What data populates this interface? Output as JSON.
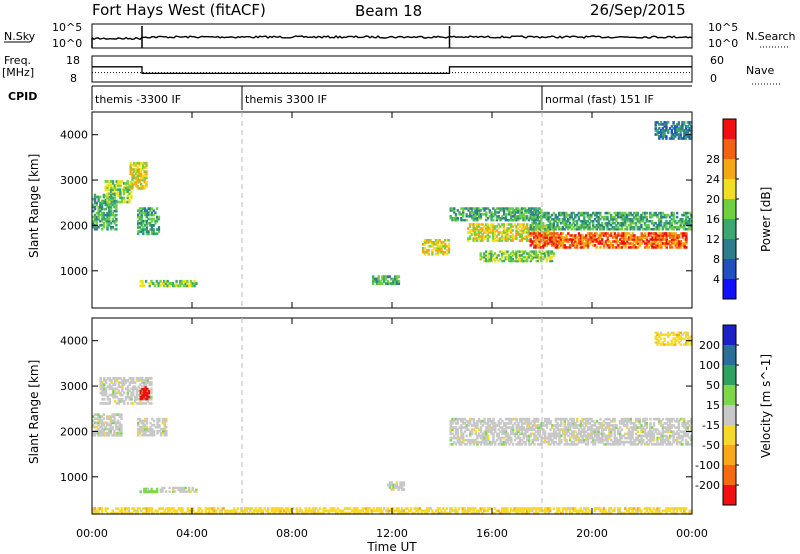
{
  "header": {
    "station": "Fort Hays West (fitACF)",
    "beam": "Beam 18",
    "date": "26/Sep/2015"
  },
  "noise_panel": {
    "left_label": "N.Sky",
    "right_label": "N.Search",
    "left_ticks": [
      "10^5",
      "10^0"
    ],
    "right_ticks": [
      "10^5",
      "10^0"
    ]
  },
  "freq_panel": {
    "left_label": "Freq.",
    "left_unit": "[MHz]",
    "right_label": "Nave",
    "left_ticks": [
      "18",
      "8"
    ],
    "right_ticks": [
      "60",
      "0"
    ],
    "freq_steps": [
      [
        0.0,
        2.0,
        14
      ],
      [
        2.0,
        14.3,
        11
      ],
      [
        14.3,
        24.0,
        14
      ]
    ],
    "nave_mean": 20
  },
  "cpid": {
    "label": "CPID",
    "segments": [
      {
        "start": 0.0,
        "name": "themis -3300 IF"
      },
      {
        "start": 6.0,
        "name": "themis 3300 IF"
      },
      {
        "start": 18.0,
        "name": "normal (fast) 151 IF"
      }
    ]
  },
  "x_axis": {
    "label": "Time UT",
    "ticks": [
      "00:00",
      "04:00",
      "08:00",
      "12:00",
      "16:00",
      "20:00",
      "00:00"
    ],
    "tick_hours": [
      0,
      4,
      8,
      12,
      16,
      20,
      24
    ]
  },
  "power_panel": {
    "ylabel": "Slant Range [km]",
    "yticks": [
      "1000",
      "2000",
      "3000",
      "4000"
    ],
    "colorbar_label": "Power [dB]",
    "colorbar_ticks": [
      "4",
      "8",
      "12",
      "16",
      "20",
      "24",
      "28"
    ],
    "colorbar_colors": [
      "#1010ff",
      "#2050c0",
      "#2c7e8c",
      "#3aa870",
      "#6fd040",
      "#f0e020",
      "#f6a810",
      "#f36010",
      "#f01010"
    ]
  },
  "velocity_panel": {
    "ylabel": "Slant Range [km]",
    "yticks": [
      "1000",
      "2000",
      "3000",
      "4000"
    ],
    "colorbar_label": "Velocity [m s^-1]",
    "colorbar_ticks": [
      "200",
      "100",
      "50",
      "15",
      "-15",
      "-50",
      "-100",
      "-200"
    ],
    "colorbar_colors": [
      "#1c20c8",
      "#2a6e9c",
      "#2ea060",
      "#7cd84a",
      "#c8c8c8",
      "#f8d828",
      "#f8a818",
      "#f86a10",
      "#f01010"
    ]
  },
  "chart_data": {
    "type": "heatmap",
    "x_range_hours": [
      0,
      24
    ],
    "y_range_km": [
      180,
      4500
    ],
    "gridlines_hours": [
      6,
      18
    ],
    "power_regions": [
      {
        "t0": 0.0,
        "t1": 1.0,
        "r0": 1900,
        "r1": 2700,
        "level": 3
      },
      {
        "t0": 0.5,
        "t1": 1.6,
        "r0": 2500,
        "r1": 3000,
        "level": 4
      },
      {
        "t0": 1.5,
        "t1": 2.2,
        "r0": 2800,
        "r1": 3400,
        "level": 5
      },
      {
        "t0": 1.8,
        "t1": 2.7,
        "r0": 1800,
        "r1": 2400,
        "level": 3
      },
      {
        "t0": 1.9,
        "t1": 4.2,
        "r0": 650,
        "r1": 800,
        "level": 4
      },
      {
        "t0": 11.2,
        "t1": 12.3,
        "r0": 700,
        "r1": 900,
        "level": 3
      },
      {
        "t0": 13.2,
        "t1": 14.3,
        "r0": 1350,
        "r1": 1700,
        "level": 5
      },
      {
        "t0": 14.3,
        "t1": 18.0,
        "r0": 2100,
        "r1": 2400,
        "level": 3
      },
      {
        "t0": 15.0,
        "t1": 18.5,
        "r0": 1650,
        "r1": 2050,
        "level": 5
      },
      {
        "t0": 17.5,
        "t1": 23.8,
        "r0": 1500,
        "r1": 1850,
        "level": 7
      },
      {
        "t0": 17.5,
        "t1": 24.0,
        "r0": 1900,
        "r1": 2300,
        "level": 3
      },
      {
        "t0": 15.5,
        "t1": 18.5,
        "r0": 1200,
        "r1": 1450,
        "level": 4
      },
      {
        "t0": 22.5,
        "t1": 24.0,
        "r0": 3900,
        "r1": 4300,
        "level": 2
      }
    ],
    "velocity_regions": [
      {
        "t0": 0.3,
        "t1": 2.4,
        "r0": 2600,
        "r1": 3200,
        "class": 4
      },
      {
        "t0": 0.0,
        "t1": 1.2,
        "r0": 1900,
        "r1": 2400,
        "class": 4
      },
      {
        "t0": 1.9,
        "t1": 2.3,
        "r0": 2700,
        "r1": 3000,
        "class": 8
      },
      {
        "t0": 1.8,
        "t1": 3.0,
        "r0": 1900,
        "r1": 2300,
        "class": 4
      },
      {
        "t0": 1.9,
        "t1": 2.7,
        "r0": 650,
        "r1": 760,
        "class": 3
      },
      {
        "t0": 2.7,
        "t1": 4.2,
        "r0": 660,
        "r1": 780,
        "class": 4
      },
      {
        "t0": 14.3,
        "t1": 24.0,
        "r0": 1700,
        "r1": 2300,
        "class": 4
      },
      {
        "t0": 11.8,
        "t1": 12.5,
        "r0": 700,
        "r1": 900,
        "class": 4
      },
      {
        "t0": 22.5,
        "t1": 24.0,
        "r0": 3900,
        "r1": 4200,
        "class": 5
      },
      {
        "t0": 0.0,
        "t1": 24.0,
        "r0": 180,
        "r1": 330,
        "class": 5
      }
    ]
  }
}
